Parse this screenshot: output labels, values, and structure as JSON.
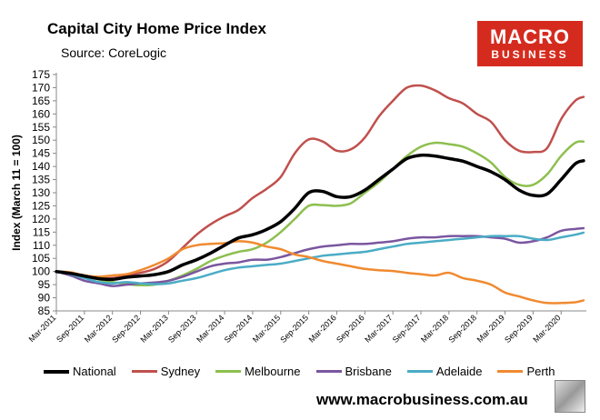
{
  "header": {
    "title": "Capital City Home Price Index",
    "source": "Source: CoreLogic"
  },
  "logo": {
    "line1": "MACRO",
    "line2": "BUSINESS"
  },
  "footer": {
    "url": "www.macrobusiness.com.au"
  },
  "chart_data": {
    "type": "line",
    "title": "Capital City Home Price Index",
    "ylabel": "Index (March 11 = 100)",
    "xlabel": "",
    "ylim": [
      85,
      175
    ],
    "yticks": [
      85,
      90,
      95,
      100,
      105,
      110,
      115,
      120,
      125,
      130,
      135,
      140,
      145,
      150,
      155,
      160,
      165,
      170,
      175
    ],
    "xlim": [
      2011.0,
      2020.45
    ],
    "xticks": [
      {
        "label": "Mar-2011",
        "x": 2011.0
      },
      {
        "label": "Sep-2011",
        "x": 2011.5
      },
      {
        "label": "Mar-2012",
        "x": 2012.0
      },
      {
        "label": "Sep-2012",
        "x": 2012.5
      },
      {
        "label": "Mar-2013",
        "x": 2013.0
      },
      {
        "label": "Sep-2013",
        "x": 2013.5
      },
      {
        "label": "Mar-2014",
        "x": 2014.0
      },
      {
        "label": "Sep-2014",
        "x": 2014.5
      },
      {
        "label": "Mar-2015",
        "x": 2015.0
      },
      {
        "label": "Sep-2015",
        "x": 2015.5
      },
      {
        "label": "Mar-2016",
        "x": 2016.0
      },
      {
        "label": "Sep-2016",
        "x": 2016.5
      },
      {
        "label": "Mar-2017",
        "x": 2017.0
      },
      {
        "label": "Sep-2017",
        "x": 2017.5
      },
      {
        "label": "Mar-2018",
        "x": 2018.0
      },
      {
        "label": "Sep-2018",
        "x": 2018.5
      },
      {
        "label": "Mar-2019",
        "x": 2019.0
      },
      {
        "label": "Sep-2019",
        "x": 2019.5
      },
      {
        "label": "Mar-2020",
        "x": 2020.0
      }
    ],
    "grid": false,
    "legend_position": "bottom",
    "x": [
      2011.0,
      2011.25,
      2011.5,
      2011.75,
      2012.0,
      2012.25,
      2012.5,
      2012.75,
      2013.0,
      2013.25,
      2013.5,
      2013.75,
      2014.0,
      2014.25,
      2014.5,
      2014.75,
      2015.0,
      2015.25,
      2015.5,
      2015.75,
      2016.0,
      2016.25,
      2016.5,
      2016.75,
      2017.0,
      2017.25,
      2017.5,
      2017.75,
      2018.0,
      2018.25,
      2018.5,
      2018.75,
      2019.0,
      2019.25,
      2019.5,
      2019.75,
      2020.0,
      2020.25,
      2020.4
    ],
    "series": [
      {
        "name": "National",
        "color": "#000000",
        "width": 3.5,
        "values": [
          100,
          99.3,
          98.3,
          97.3,
          97,
          97.8,
          98.3,
          98.8,
          100,
          102.5,
          104.5,
          107,
          110,
          112.8,
          114,
          116,
          119,
          124,
          130,
          130.5,
          128.5,
          128.5,
          131,
          135,
          139,
          143,
          144.3,
          144,
          143,
          142,
          140,
          138,
          135,
          131,
          129,
          129.5,
          135,
          141,
          142.2
        ]
      },
      {
        "name": "Sydney",
        "color": "#c0504d",
        "width": 2.5,
        "values": [
          100,
          99.5,
          98.5,
          97.5,
          97.5,
          98.5,
          99.5,
          101,
          104,
          109,
          114,
          118,
          121,
          123.5,
          128,
          131.5,
          136,
          145,
          150.3,
          149.5,
          146,
          146.5,
          151,
          159,
          165,
          170,
          170.8,
          169,
          166,
          164,
          160,
          157,
          150,
          146,
          145.5,
          147,
          158,
          165,
          166.5
        ]
      },
      {
        "name": "Melbourne",
        "color": "#8dbf4f",
        "width": 2.5,
        "values": [
          100,
          99.5,
          98.5,
          97,
          96,
          95.2,
          94.8,
          95,
          96.5,
          98.5,
          101,
          104,
          106,
          107.5,
          108.5,
          111,
          115,
          120,
          125,
          125.3,
          125,
          126,
          130,
          134,
          139,
          144,
          147.5,
          149,
          148.5,
          147.5,
          145,
          141.5,
          136,
          133,
          133,
          137,
          144,
          149,
          149.5
        ]
      },
      {
        "name": "Brisbane",
        "color": "#7a56a0",
        "width": 2.5,
        "values": [
          100,
          98.5,
          96.5,
          95.5,
          94.5,
          95,
          95.5,
          95.8,
          96.5,
          98,
          100,
          102,
          103,
          103.5,
          104.5,
          104.5,
          105.5,
          107,
          108.5,
          109.5,
          110,
          110.5,
          110.5,
          111,
          111.5,
          112.5,
          113,
          113,
          113.5,
          113.5,
          113.5,
          113,
          112.5,
          111,
          111.5,
          113,
          115.5,
          116.2,
          116.5
        ]
      },
      {
        "name": "Adelaide",
        "color": "#4bacc6",
        "width": 2.5,
        "values": [
          100,
          99,
          97.5,
          96,
          95.5,
          96,
          95.5,
          95.2,
          95.5,
          96.5,
          97.5,
          99,
          100.5,
          101.5,
          102,
          102.5,
          103,
          104,
          105,
          106,
          106.5,
          107,
          107.5,
          108.5,
          109.5,
          110.5,
          111,
          111.5,
          112,
          112.5,
          113,
          113.5,
          113.5,
          113.5,
          112.5,
          112,
          113,
          114,
          114.8
        ]
      },
      {
        "name": "Perth",
        "color": "#f08a30",
        "width": 2.5,
        "values": [
          100,
          99.7,
          98.5,
          98,
          98.5,
          99,
          100.5,
          102.5,
          105,
          108.5,
          110,
          110.5,
          110.8,
          111.5,
          111,
          109.5,
          108.5,
          106.5,
          105.5,
          104,
          103,
          102,
          101,
          100.5,
          100.2,
          99.5,
          99,
          98.5,
          99.5,
          97.5,
          96.5,
          95,
          92,
          90.5,
          89,
          88,
          88,
          88.3,
          89
        ]
      }
    ]
  }
}
